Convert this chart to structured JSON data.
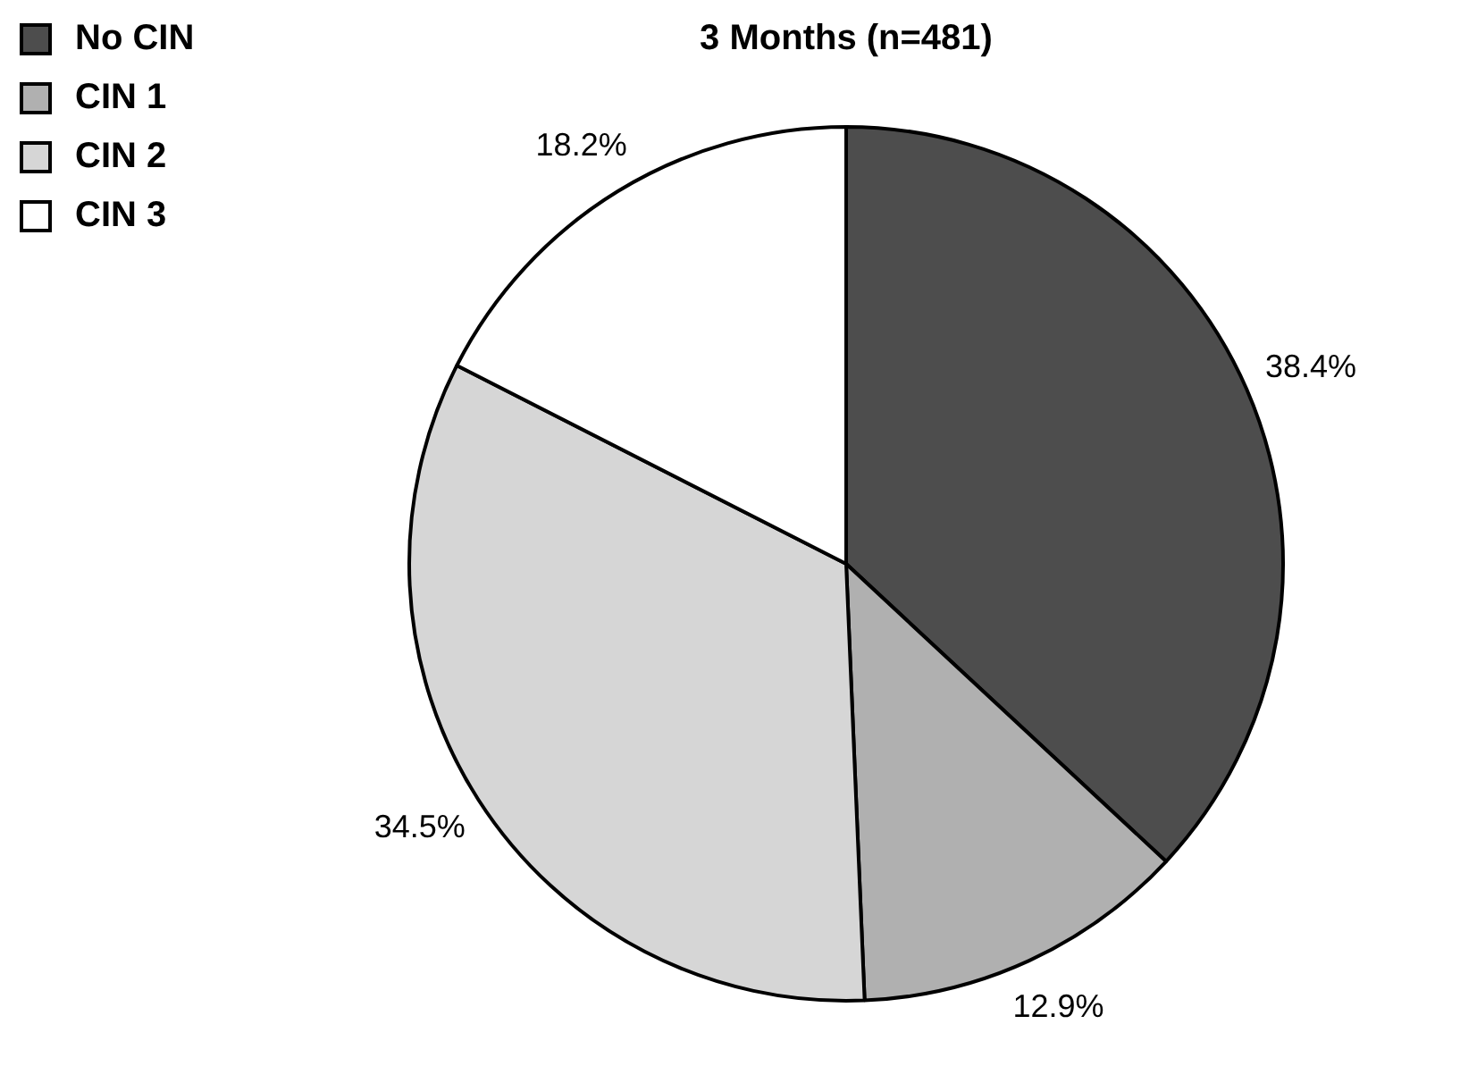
{
  "chart_data": {
    "type": "pie",
    "title": "3 Months (n=481)",
    "categories": [
      "No CIN",
      "CIN 1",
      "CIN 2",
      "CIN 3"
    ],
    "values": [
      38.4,
      12.9,
      34.5,
      18.2
    ],
    "colors": [
      "#4d4d4d",
      "#b0b0b0",
      "#d6d6d6",
      "#ffffff"
    ],
    "value_labels": [
      "38.4%",
      "12.9%",
      "34.5%",
      "18.2%"
    ],
    "legend": "top left"
  }
}
